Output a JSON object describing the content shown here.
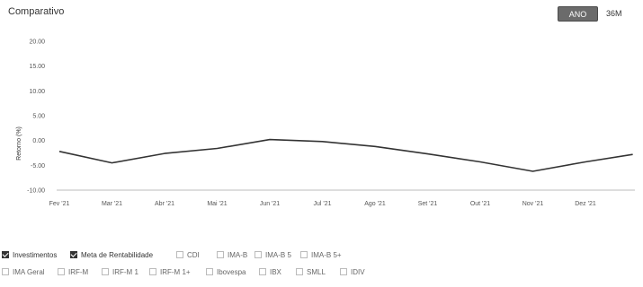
{
  "header": {
    "title": "Comparativo",
    "btn_ano": "ANO",
    "btn_36m": "36M"
  },
  "chart_data": {
    "type": "line",
    "title": "",
    "ylabel": "Retorno (%)",
    "xlabel": "",
    "ylim": [
      -10,
      20
    ],
    "y_ticks": [
      "20.00",
      "15.00",
      "10.00",
      "5.00",
      "0.00",
      "-5.00",
      "-10.00"
    ],
    "categories": [
      "Fev '21",
      "Mar '21",
      "Abr '21",
      "Mai '21",
      "Jun '21",
      "Jul '21",
      "Ago '21",
      "Set '21",
      "Out '21",
      "Nov '21",
      "Dez '21"
    ],
    "series": [
      {
        "name": "Investimentos",
        "color": "#333333",
        "x": [
          0,
          1,
          2,
          3,
          4,
          5,
          6,
          7,
          8,
          9,
          10,
          10.9
        ],
        "values": [
          -2.2,
          -4.5,
          -2.6,
          -1.6,
          0.2,
          -0.2,
          -1.2,
          -2.7,
          -4.3,
          -6.2,
          -4.3,
          -2.8
        ]
      }
    ],
    "grid": false
  },
  "filters": {
    "row1": [
      {
        "label": "Investimentos",
        "checked": true
      },
      {
        "label": "Meta de Rentabilidade",
        "checked": true
      },
      {
        "label": "CDI",
        "checked": false
      },
      {
        "label": "IMA-B",
        "checked": false
      },
      {
        "label": "IMA-B 5",
        "checked": false
      },
      {
        "label": "IMA-B 5+",
        "checked": false
      }
    ],
    "row2": [
      {
        "label": "IMA Geral",
        "checked": false
      },
      {
        "label": "IRF-M",
        "checked": false
      },
      {
        "label": "IRF-M 1",
        "checked": false
      },
      {
        "label": "IRF-M 1+",
        "checked": false
      },
      {
        "label": "Ibovespa",
        "checked": false
      },
      {
        "label": "IBX",
        "checked": false
      },
      {
        "label": "SMLL",
        "checked": false
      },
      {
        "label": "IDIV",
        "checked": false
      }
    ]
  }
}
